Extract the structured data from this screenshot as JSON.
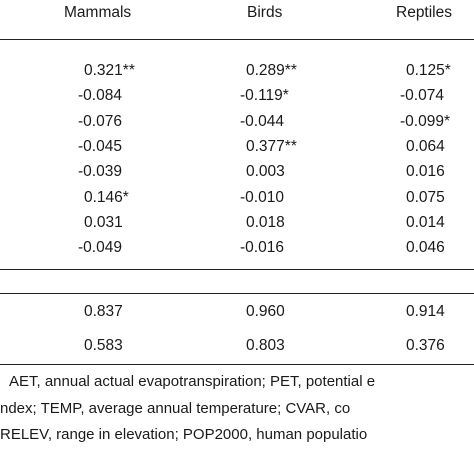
{
  "columns": [
    "Mammals",
    "Birds",
    "Reptiles"
  ],
  "rows": [
    [
      "0.321**",
      "0.289**",
      "0.125*"
    ],
    [
      "-0.084",
      "-0.119*",
      "-0.074"
    ],
    [
      "-0.076",
      "-0.044",
      "-0.099*"
    ],
    [
      "-0.045",
      "0.377**",
      "0.064"
    ],
    [
      "-0.039",
      "0.003",
      "0.016"
    ],
    [
      "0.146*",
      "-0.010",
      "0.075"
    ],
    [
      "0.031",
      "0.018",
      "0.014"
    ],
    [
      "-0.049",
      "-0.016",
      "0.046"
    ]
  ],
  "summary_rows": [
    [
      "0.837",
      "0.960",
      "0.914"
    ],
    [
      "0.583",
      "0.803",
      "0.376"
    ]
  ],
  "footnote": [
    "AET, annual actual evapotranspiration; PET, potential e",
    "ndex; TEMP, average annual temperature; CVAR, co",
    "RELEV, range in elevation; POP2000, human populatio"
  ]
}
